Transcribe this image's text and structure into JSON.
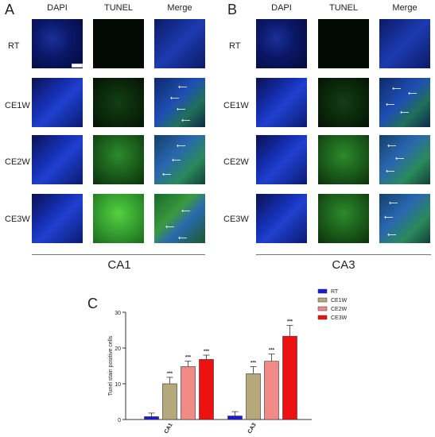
{
  "panels": {
    "a": {
      "letter": "A",
      "columns": [
        "DAPI",
        "TUNEL",
        "Merge"
      ],
      "rows": [
        "RT",
        "CE1W",
        "CE2W",
        "CE3W"
      ],
      "region": "CA1"
    },
    "b": {
      "letter": "B",
      "columns": [
        "DAPI",
        "TUNEL",
        "Merge"
      ],
      "rows": [
        "RT",
        "CE1W",
        "CE2W",
        "CE3W"
      ],
      "region": "CA3"
    },
    "c": {
      "letter": "C"
    }
  },
  "chart_data": {
    "type": "bar",
    "categories": [
      "CA1",
      "CA3"
    ],
    "ylabel": "Tunel stain positive cells",
    "ylim": [
      0,
      30
    ],
    "yticks": [
      0,
      10,
      20,
      30
    ],
    "legend_position": "top-right",
    "significance": "***",
    "series": [
      {
        "name": "RT",
        "color": "#1a1adb",
        "values": [
          0.8,
          1.0
        ],
        "errors": [
          1.0,
          1.2
        ],
        "sig": [
          false,
          false
        ]
      },
      {
        "name": "CE1W",
        "color": "#b5a87a",
        "values": [
          10.0,
          12.8
        ],
        "errors": [
          1.8,
          2.0
        ],
        "sig": [
          true,
          true
        ]
      },
      {
        "name": "CE2W",
        "color": "#f08a86",
        "values": [
          14.8,
          16.3
        ],
        "errors": [
          1.5,
          2.0
        ],
        "sig": [
          true,
          true
        ]
      },
      {
        "name": "CE3W",
        "color": "#ee1111",
        "values": [
          16.8,
          23.3
        ],
        "errors": [
          1.2,
          3.0
        ],
        "sig": [
          true,
          true
        ]
      }
    ]
  }
}
